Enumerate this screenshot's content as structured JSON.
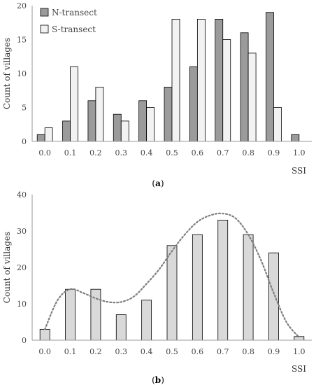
{
  "chart_data": [
    {
      "type": "bar",
      "panel_label": "(a)",
      "categories": [
        "0.0",
        "0.1",
        "0.2",
        "0.3",
        "0.4",
        "0.5",
        "0.6",
        "0.7",
        "0.8",
        "0.9",
        "1.0"
      ],
      "series": [
        {
          "name": "N-transect",
          "color": "#9b9b9b",
          "values": [
            1,
            3,
            6,
            4,
            6,
            8,
            11,
            18,
            16,
            19,
            1
          ]
        },
        {
          "name": "S-transect",
          "color": "#f2f2f2",
          "values": [
            2,
            11,
            8,
            3,
            5,
            18,
            18,
            15,
            13,
            5,
            0
          ]
        }
      ],
      "ylim": [
        0,
        20
      ],
      "yticks": [
        "0",
        "5",
        "10",
        "15",
        "20"
      ],
      "xlabel": "SSI",
      "ylabel": "Count of villages",
      "legend": "top-left",
      "grid": false
    },
    {
      "type": "bar",
      "panel_label": "(b)",
      "categories": [
        "0.0",
        "0.1",
        "0.2",
        "0.3",
        "0.4",
        "0.5",
        "0.6",
        "0.7",
        "0.8",
        "0.9",
        "1.0"
      ],
      "series": [
        {
          "color": "#d9d9d9",
          "values": [
            3,
            14,
            14,
            7,
            11,
            26,
            29,
            33,
            29,
            24,
            1
          ]
        }
      ],
      "trend": {
        "style": "dotted",
        "color": "#7f7f7f",
        "x": [
          0.0,
          0.05,
          0.1,
          0.15,
          0.2,
          0.25,
          0.3,
          0.35,
          0.4,
          0.45,
          0.5,
          0.55,
          0.6,
          0.65,
          0.7,
          0.75,
          0.8,
          0.85,
          0.9,
          0.95,
          1.0
        ],
        "y": [
          3,
          11,
          14,
          13,
          11.5,
          10.5,
          10.5,
          12,
          15.5,
          19.5,
          24.5,
          29,
          32.5,
          34.3,
          34.8,
          33.5,
          29,
          22,
          13,
          5,
          0.8
        ]
      },
      "ylim": [
        0,
        40
      ],
      "yticks": [
        "0",
        "10",
        "20",
        "30",
        "40"
      ],
      "xlabel": "SSI",
      "ylabel": "Count of villages",
      "grid": false
    }
  ]
}
